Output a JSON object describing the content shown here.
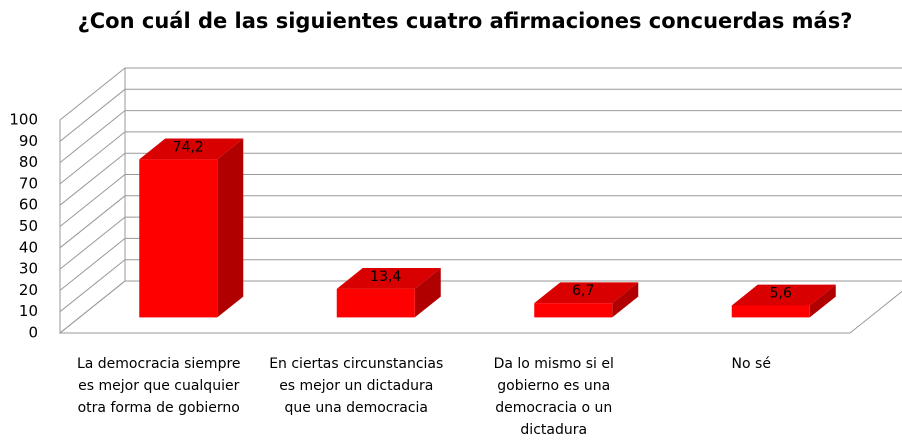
{
  "chart_data": {
    "type": "bar3d",
    "title": "¿Con cuál de las  siguientes cuatro afirmaciones concuerdas más?",
    "categories": [
      "La democracia siempre\nes mejor que cualquier\notra forma de gobierno",
      "En ciertas circunstancias\nes  mejor un dictadura\nque una democracia",
      "Da lo mismo si el\ngobierno es una\ndemocracia o un\ndictadura",
      "No sé"
    ],
    "values": [
      74.2,
      13.4,
      6.7,
      5.6
    ],
    "value_labels": [
      "74,2",
      "13,4",
      "6,7",
      "5,6"
    ],
    "color": "#ff0000",
    "ylim": [
      0,
      100
    ],
    "yticks": [
      0,
      10,
      20,
      30,
      40,
      50,
      60,
      70,
      80,
      90,
      100
    ],
    "grid": true
  }
}
